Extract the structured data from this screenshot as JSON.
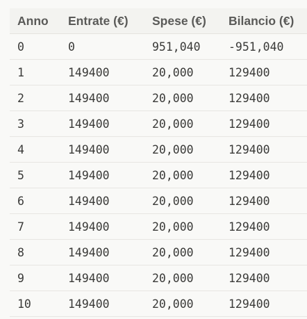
{
  "table": {
    "headers": [
      "Anno",
      "Entrate (€)",
      "Spese (€)",
      "Bilancio (€)"
    ],
    "rows": [
      [
        "0",
        "0",
        "951,040",
        "-951,040"
      ],
      [
        "1",
        "149400",
        "20,000",
        "129400"
      ],
      [
        "2",
        "149400",
        "20,000",
        "129400"
      ],
      [
        "3",
        "149400",
        "20,000",
        "129400"
      ],
      [
        "4",
        "149400",
        "20,000",
        "129400"
      ],
      [
        "5",
        "149400",
        "20,000",
        "129400"
      ],
      [
        "6",
        "149400",
        "20,000",
        "129400"
      ],
      [
        "7",
        "149400",
        "20,000",
        "129400"
      ],
      [
        "8",
        "149400",
        "20,000",
        "129400"
      ],
      [
        "9",
        "149400",
        "20,000",
        "129400"
      ],
      [
        "10",
        "149400",
        "20,000",
        "129400"
      ]
    ]
  }
}
